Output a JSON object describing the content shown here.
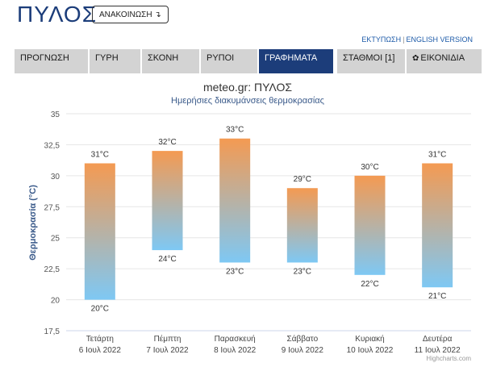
{
  "header": {
    "title": "ΠΥΛΟΣ",
    "announce_label": "ΑΝΑΚΟΙΝΩΣΗ ↴",
    "print_link": "ΕΚΤΥΠΩΣΗ",
    "separator": "|",
    "english_link": "ENGLISH VERSION"
  },
  "tabs": [
    {
      "label": "ΠΡΟΓΝΩΣΗ"
    },
    {
      "label": "ΓΥΡΗ"
    },
    {
      "label": "ΣΚΟΝΗ"
    },
    {
      "label": "ΡΥΠΟΙ"
    },
    {
      "label": "ΓΡΑΦΗΜΑΤΑ",
      "active": true
    },
    {
      "label": "ΣΤΑΘΜΟΙ [1]"
    },
    {
      "label": "ΕΙΚΟΝΙΔΙΑ",
      "icon": "gear-icon"
    }
  ],
  "chart_data": {
    "type": "columnrange",
    "title": "meteo.gr: ΠΥΛΟΣ",
    "subtitle": "Ημερήσιες διακυμάνσεις θερμοκρασίας",
    "ylabel": "Θερμοκρασία (°C)",
    "ylim": [
      17.5,
      35
    ],
    "yticks": [
      "17,5",
      "20",
      "22,5",
      "25",
      "27,5",
      "30",
      "32,5",
      "35"
    ],
    "grid": true,
    "categories": [
      [
        "Τετάρτη",
        "6 Ιουλ 2022"
      ],
      [
        "Πέμπτη",
        "7 Ιουλ 2022"
      ],
      [
        "Παρασκευή",
        "8 Ιουλ 2022"
      ],
      [
        "Σάββατο",
        "9 Ιουλ 2022"
      ],
      [
        "Κυριακή",
        "10 Ιουλ 2022"
      ],
      [
        "Δευτέρα",
        "11 Ιουλ 2022"
      ]
    ],
    "low": [
      20,
      24,
      23,
      23,
      22,
      21
    ],
    "high": [
      31,
      32,
      33,
      29,
      30,
      31
    ],
    "unit_suffix": "°C",
    "colors": {
      "top": "#f49a52",
      "bottom": "#7ec8f4",
      "grid": "#e6e6e6",
      "title": "#333333",
      "subtitle": "#3a5a8a"
    },
    "credits": "Highcharts.com"
  }
}
